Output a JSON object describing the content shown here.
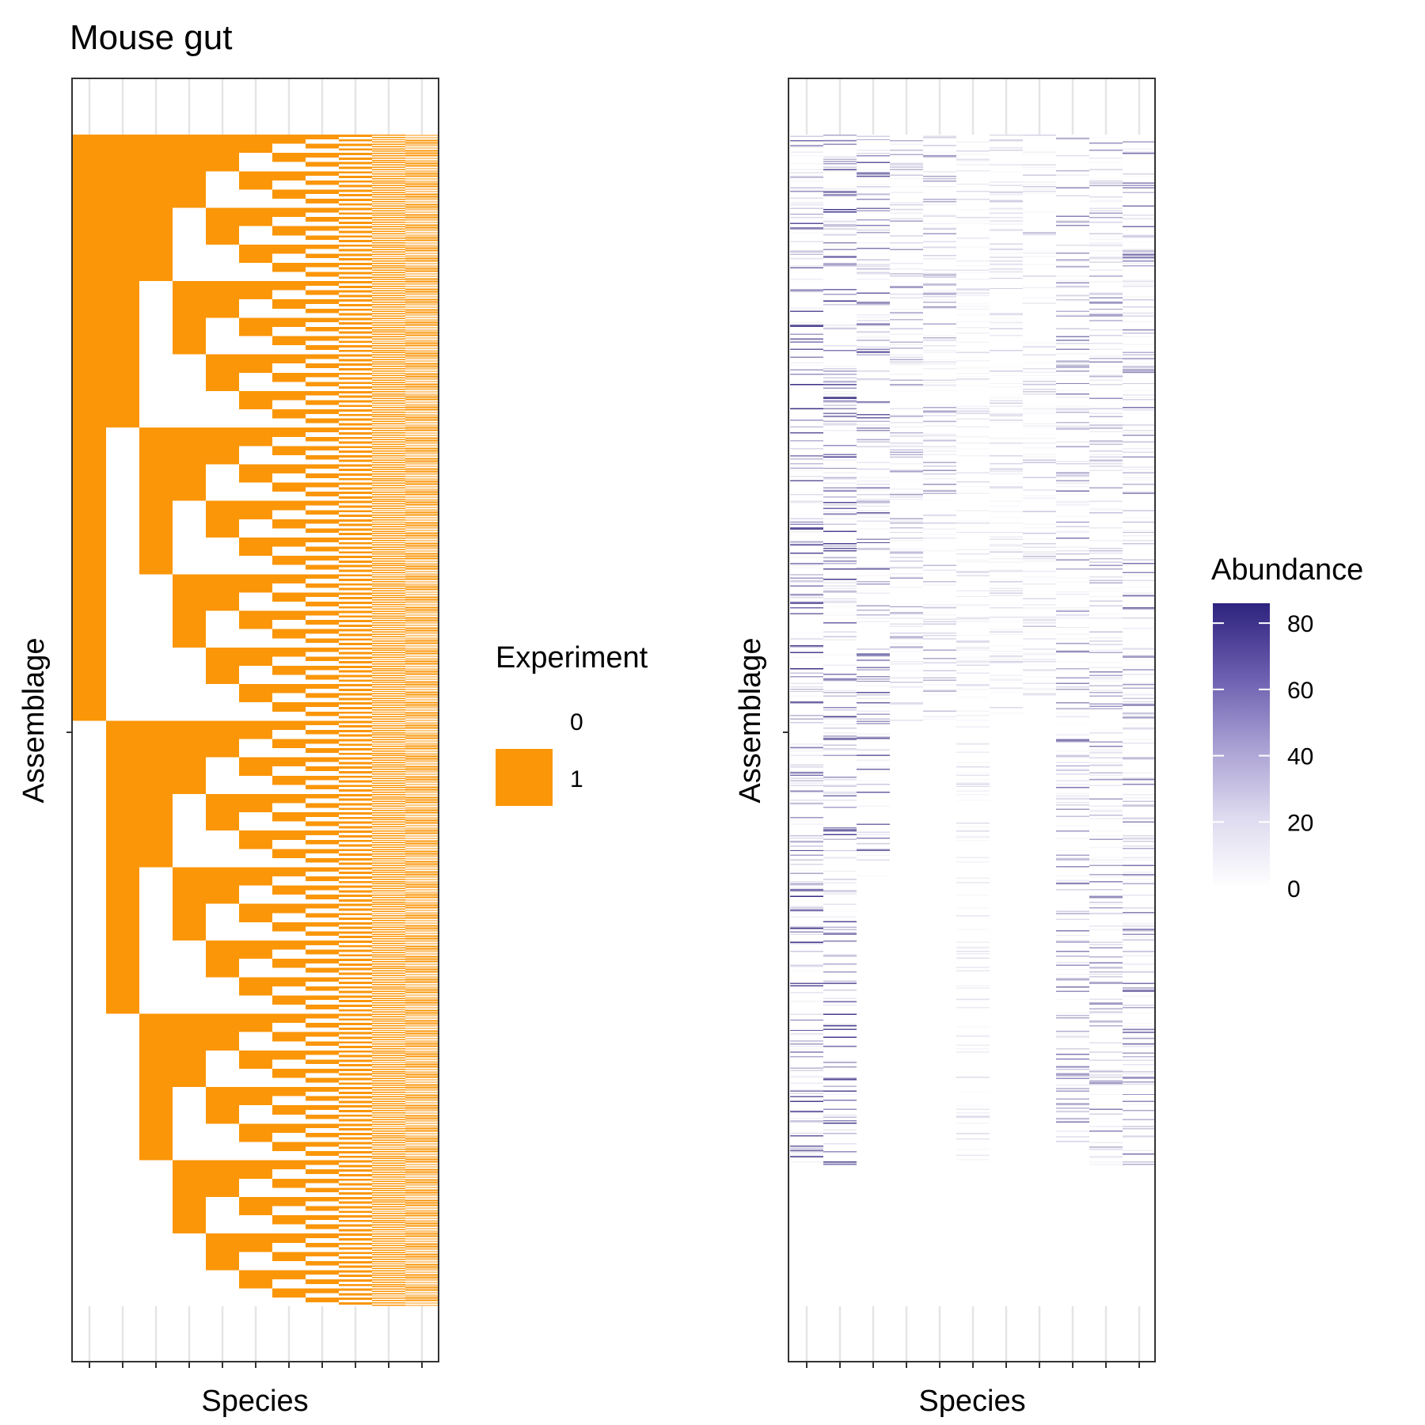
{
  "title": "Mouse gut",
  "colors": {
    "present": "#FB9608",
    "absent": "#FFFFFF",
    "abundance_low": "#FFFFFF",
    "abundance_high": "#2E237E",
    "grid": "#E5E5E5",
    "frame": "#333333"
  },
  "chart_data": [
    {
      "type": "heatmap",
      "panel": "presence",
      "xlabel": "Species",
      "ylabel": "Assemblage",
      "species_count": 11,
      "assemblage_count": 2047,
      "fill_rule": "complete binary design: species j present in assemblage i when bit (10 - j) of (2047 - i) is 1",
      "legend": {
        "title": "Experiment",
        "levels": [
          "0",
          "1"
        ],
        "level_colors": [
          "#FFFFFF",
          "#FB9608"
        ]
      }
    },
    {
      "type": "heatmap",
      "panel": "abundance",
      "xlabel": "Species",
      "ylabel": "Assemblage",
      "species_count": 11,
      "assemblage_count": 2047,
      "value_range": [
        0,
        86
      ],
      "legend": {
        "title": "Abundance",
        "ticks": [
          0,
          20,
          40,
          60,
          80
        ]
      },
      "row_ranges_with_data": [
        [
          0,
          1800
        ],
        [
          0,
          1800
        ],
        [
          0,
          1300
        ],
        [
          0,
          1023
        ],
        [
          0,
          1023
        ],
        [
          0,
          1800
        ],
        [
          0,
          1023
        ],
        [
          0,
          1023
        ],
        [
          0,
          1800
        ],
        [
          0,
          1800
        ],
        [
          0,
          1800
        ]
      ],
      "species_max_abundance": [
        84,
        80,
        70,
        40,
        45,
        15,
        20,
        25,
        55,
        50,
        60
      ]
    }
  ]
}
